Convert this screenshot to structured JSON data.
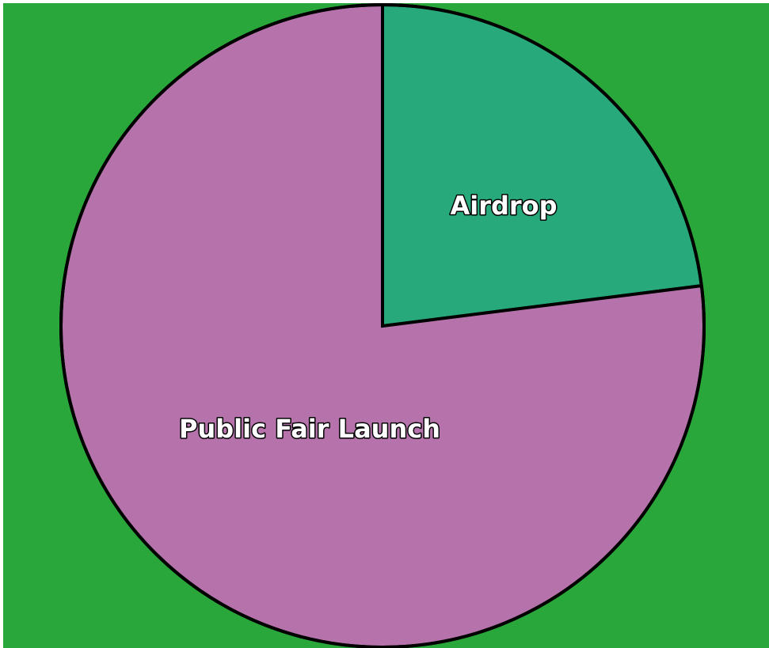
{
  "chart_data": {
    "type": "pie",
    "slices": [
      {
        "label": "Airdrop",
        "value": 23,
        "color": "#27a97b"
      },
      {
        "label": "Public Fair Launch",
        "value": 77,
        "color": "#b672ab"
      }
    ],
    "start_angle_deg": 0,
    "direction": "clockwise",
    "title": "",
    "legend": "none"
  },
  "colors": {
    "background": "#29a73a",
    "outline": "#000000",
    "label_text": "#ffffff"
  }
}
